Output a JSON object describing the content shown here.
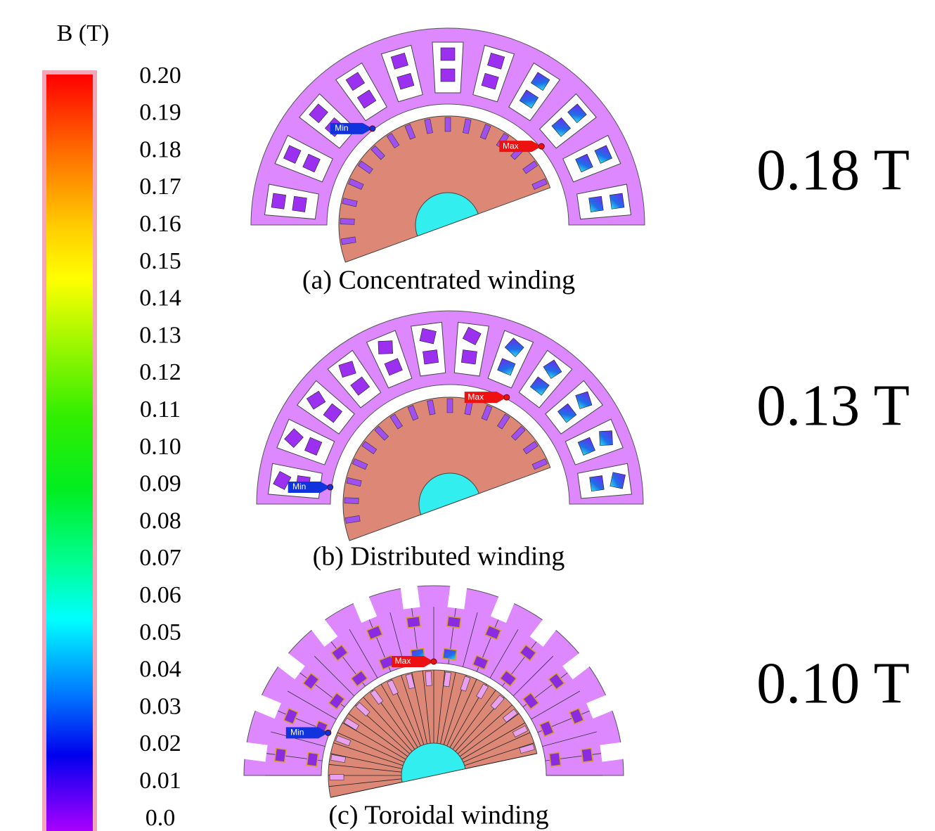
{
  "colorbar": {
    "title": "B (T)",
    "ticks": [
      "0.20",
      "0.19",
      "0.18",
      "0.17",
      "0.16",
      "0.15",
      "0.14",
      "0.13",
      "0.12",
      "0.11",
      "0.10",
      "0.09",
      "0.08",
      "0.07",
      "0.06",
      "0.05",
      "0.04",
      "0.03",
      "0.02",
      "0.01",
      "0.0"
    ]
  },
  "panels": [
    {
      "caption": "(a) Concentrated winding",
      "max_label": "Max",
      "min_label": "Min",
      "peak": "0.18 T"
    },
    {
      "caption": "(b) Distributed winding",
      "max_label": "Max",
      "min_label": "Min",
      "peak": "0.13 T"
    },
    {
      "caption": "(c) Toroidal winding",
      "max_label": "Max",
      "min_label": "Min",
      "peak": "0.10 T"
    }
  ]
}
